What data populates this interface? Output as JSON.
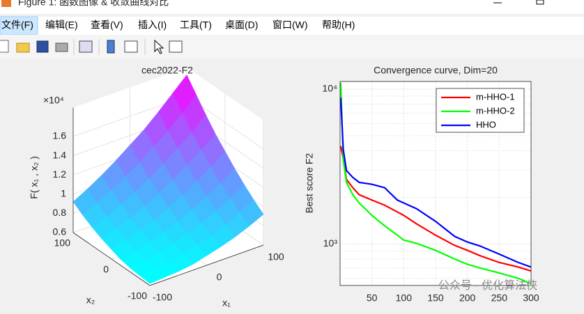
{
  "window": {
    "title": "Figure 1: 函数图像 & 收敛曲线对比"
  },
  "menu": [
    "文件(F)",
    "编辑(E)",
    "查看(V)",
    "插入(I)",
    "工具(T)",
    "桌面(D)",
    "窗口(W)",
    "帮助(H)"
  ],
  "watermark": "公众号 · 优化算法侠",
  "chart_data": [
    {
      "type": "surface",
      "title": "cec2022-F2",
      "xlabel": "x₁",
      "ylabel": "x₂",
      "zlabel": "F( x₁ , x₂ )",
      "zscale": "×10⁴",
      "x": [
        -100,
        -75,
        -50,
        -25,
        0,
        25,
        50,
        75,
        100
      ],
      "y": [
        -100,
        -75,
        -50,
        -25,
        0,
        25,
        50,
        75,
        100
      ],
      "z": [
        [
          0.62,
          0.63,
          0.64,
          0.66,
          0.7,
          0.74,
          0.79,
          0.85,
          0.92
        ],
        [
          0.63,
          0.64,
          0.66,
          0.7,
          0.74,
          0.79,
          0.85,
          0.92,
          1.0
        ],
        [
          0.64,
          0.66,
          0.7,
          0.74,
          0.79,
          0.85,
          0.92,
          1.0,
          1.09
        ],
        [
          0.66,
          0.7,
          0.74,
          0.79,
          0.85,
          0.92,
          1.0,
          1.09,
          1.19
        ],
        [
          0.7,
          0.74,
          0.79,
          0.85,
          0.92,
          1.0,
          1.09,
          1.19,
          1.3
        ],
        [
          0.74,
          0.79,
          0.85,
          0.92,
          1.0,
          1.09,
          1.19,
          1.3,
          1.41
        ],
        [
          0.79,
          0.85,
          0.92,
          1.0,
          1.09,
          1.19,
          1.3,
          1.41,
          1.54
        ],
        [
          0.85,
          0.92,
          1.0,
          1.09,
          1.19,
          1.3,
          1.41,
          1.54,
          1.68
        ],
        [
          0.92,
          1.0,
          1.09,
          1.19,
          1.3,
          1.41,
          1.54,
          1.68,
          1.82
        ]
      ],
      "xlim": [
        -100,
        100
      ],
      "ylim": [
        -100,
        100
      ],
      "zlim": [
        0.6,
        1.9
      ],
      "xticks": [
        -100,
        0,
        100
      ],
      "yticks": [
        -100,
        0,
        100
      ],
      "zticks": [
        0.6,
        0.8,
        1,
        1.2,
        1.4,
        1.6
      ],
      "colormap": [
        "#00ffff",
        "#ff00ff"
      ],
      "grid": true
    },
    {
      "type": "line",
      "title": "Convergence curve, Dim=20",
      "ylabel": "Best score F2",
      "x": [
        1,
        5,
        10,
        20,
        30,
        50,
        70,
        90,
        100,
        120,
        150,
        180,
        200,
        220,
        250,
        280,
        300
      ],
      "series": [
        {
          "name": "m-HHO-1",
          "color": "#ff0000",
          "values": [
            4290,
            3560,
            2610,
            2310,
            2080,
            1920,
            1780,
            1610,
            1530,
            1350,
            1140,
            980,
            910,
            840,
            760,
            710,
            670
          ]
        },
        {
          "name": "m-HHO-2",
          "color": "#00ff00",
          "values": [
            11000,
            3490,
            2500,
            2080,
            1840,
            1530,
            1310,
            1140,
            1060,
            1010,
            910,
            800,
            740,
            700,
            650,
            600,
            555
          ]
        },
        {
          "name": "HHO",
          "color": "#0000ff",
          "values": [
            8800,
            4070,
            2980,
            2690,
            2500,
            2430,
            2310,
            1920,
            1840,
            1690,
            1400,
            1120,
            1030,
            970,
            860,
            760,
            710
          ]
        }
      ],
      "xlim": [
        0,
        300
      ],
      "ylim": [
        540,
        11200
      ],
      "log_y": true,
      "xticks": [
        50,
        100,
        150,
        200,
        250,
        300
      ],
      "yticks": [
        {
          "value": 1000,
          "label": "10³"
        },
        {
          "value": 10000,
          "label": "10⁴"
        }
      ],
      "grid": true,
      "legend": "northeast"
    }
  ]
}
